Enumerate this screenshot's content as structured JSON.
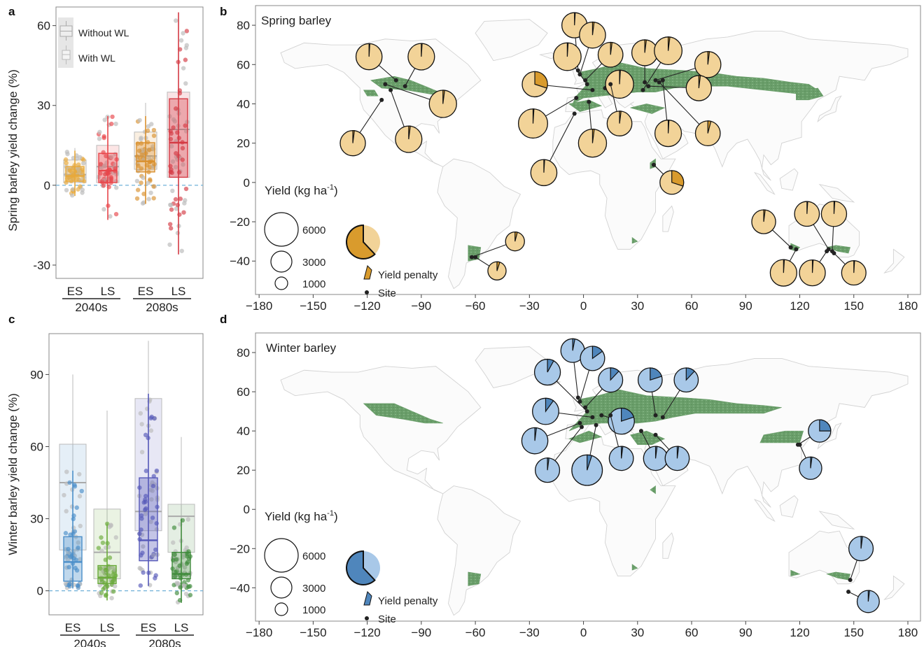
{
  "panels": {
    "a": "a",
    "b": "b",
    "c": "c",
    "d": "d"
  },
  "legend_box": {
    "without": "Without WL",
    "with": "With WL"
  },
  "colors": {
    "spring_es": "#e8a93a",
    "spring_ls": "#e8454a",
    "winter_es": "#4a8ec9",
    "winter_ls": "#6aaa3a",
    "winter_es2080": "#5558b8",
    "winter_ls2080": "#3e8a3a",
    "crop": "#6a9e6a",
    "spring_pie": "#f2d398",
    "spring_pen": "#d99b2d",
    "winter_pie": "#a8c8e8",
    "winter_pen": "#4f86bc",
    "baseline": "#6fb0d8"
  },
  "chart_data": [
    {
      "type": "box",
      "panel": "a",
      "ylabel": "Spring barley yield change (%)",
      "ylim": [
        -35,
        67
      ],
      "yticks": [
        60,
        30,
        0,
        -30
      ],
      "categories": [
        "ES",
        "LS",
        "ES",
        "LS"
      ],
      "periods": [
        "2040s",
        "2080s"
      ],
      "without_wl": [
        {
          "q1": 1,
          "median": 4,
          "q3": 9.5,
          "whislo": -4,
          "whishi": 14
        },
        {
          "q1": 1,
          "median": 7,
          "q3": 15,
          "whislo": -9,
          "whishi": 22
        },
        {
          "q1": 6,
          "median": 11,
          "q3": 20,
          "whislo": -5,
          "whishi": 31
        },
        {
          "q1": 3,
          "median": 21,
          "q3": 35,
          "whislo": -10,
          "whishi": 64
        }
      ],
      "with_wl": [
        {
          "q1": 1.5,
          "median": 3.5,
          "q3": 7,
          "whislo": -4,
          "whishi": 13
        },
        {
          "q1": 1,
          "median": 5.5,
          "q3": 12,
          "whislo": -13,
          "whishi": 26
        },
        {
          "q1": 5,
          "median": 9,
          "q3": 16,
          "whislo": -7,
          "whishi": 26
        },
        {
          "q1": 3,
          "median": 16,
          "q3": 32.5,
          "whislo": -26,
          "whishi": 65
        }
      ]
    },
    {
      "type": "box",
      "panel": "c",
      "ylabel": "Winter barley yield change (%)",
      "ylim": [
        -10,
        107
      ],
      "yticks": [
        90,
        60,
        30,
        0
      ],
      "categories": [
        "ES",
        "LS",
        "ES",
        "LS"
      ],
      "periods": [
        "2040s",
        "2080s"
      ],
      "without_wl": [
        {
          "q1": 17,
          "median": 45,
          "q3": 61,
          "whislo": 1,
          "whishi": 90
        },
        {
          "q1": 5,
          "median": 16,
          "q3": 34,
          "whislo": 0,
          "whishi": 75
        },
        {
          "q1": 25,
          "median": 33,
          "q3": 80,
          "whislo": 3,
          "whishi": 104
        },
        {
          "q1": 16,
          "median": 31,
          "q3": 36,
          "whislo": 0,
          "whishi": 64
        }
      ],
      "with_wl": [
        {
          "q1": 4,
          "median": 12,
          "q3": 22.5,
          "whislo": 1,
          "whishi": 50
        },
        {
          "q1": 3,
          "median": 5.5,
          "q3": 10.5,
          "whislo": -4,
          "whishi": 28
        },
        {
          "q1": 12.5,
          "median": 21,
          "q3": 47,
          "whislo": 2,
          "whishi": 82
        },
        {
          "q1": 5,
          "median": 7,
          "q3": 16,
          "whislo": -5,
          "whishi": 30
        }
      ]
    },
    {
      "type": "map",
      "panel": "b",
      "title": "Spring barley",
      "xlim": [
        -182,
        187
      ],
      "ylim": [
        -57,
        90
      ],
      "xticks": [
        -180,
        -150,
        -120,
        -90,
        -60,
        -30,
        0,
        30,
        60,
        90,
        120,
        150,
        180
      ],
      "yticks": [
        80,
        60,
        40,
        20,
        0,
        -20,
        -40
      ],
      "legend_title": "Yield (kg ha",
      "legend_sup": "-1",
      "legend_title_end": ")",
      "legend_sizes": [
        "6000",
        "3000",
        "1000"
      ],
      "legend_penalty": "Yield penalty",
      "legend_site": "Site",
      "pies": [
        {
          "site": [
            -104,
            52
          ],
          "pie": [
            -119,
            64
          ],
          "yield": 4600,
          "penalty": 0.01
        },
        {
          "site": [
            -99,
            49
          ],
          "pie": [
            -90,
            64
          ],
          "yield": 4800,
          "penalty": 0.01
        },
        {
          "site": [
            -110,
            50
          ],
          "pie": [
            -78,
            40
          ],
          "yield": 5200,
          "penalty": 0.02
        },
        {
          "site": [
            -112,
            42
          ],
          "pie": [
            -128,
            20
          ],
          "yield": 4200,
          "penalty": 0.02
        },
        {
          "site": [
            -107,
            47
          ],
          "pie": [
            -97,
            22
          ],
          "yield": 4800,
          "penalty": 0.02
        },
        {
          "site": [
            -62,
            -38
          ],
          "pie": [
            -38,
            -30
          ],
          "yield": 1800,
          "penalty": 0.04
        },
        {
          "site": [
            -60,
            -38
          ],
          "pie": [
            -48,
            -45
          ],
          "yield": 1600,
          "penalty": 0.05
        },
        {
          "site": [
            -3,
            57
          ],
          "pie": [
            -5,
            80
          ],
          "yield": 4200,
          "penalty": 0.01
        },
        {
          "site": [
            -2,
            55
          ],
          "pie": [
            5,
            75
          ],
          "yield": 4600,
          "penalty": 0.02
        },
        {
          "site": [
            1,
            52
          ],
          "pie": [
            15,
            65
          ],
          "yield": 4000,
          "penalty": 0.02
        },
        {
          "site": [
            2,
            50
          ],
          "pie": [
            -9,
            64
          ],
          "yield": 5400,
          "penalty": 0.01
        },
        {
          "site": [
            5,
            47
          ],
          "pie": [
            -27,
            50
          ],
          "yield": 4200,
          "penalty": 0.3
        },
        {
          "site": [
            12,
            48
          ],
          "pie": [
            20,
            50
          ],
          "yield": 5600,
          "penalty": 0.01
        },
        {
          "site": [
            -4,
            43
          ],
          "pie": [
            -28,
            30
          ],
          "yield": 6200,
          "penalty": 0.01
        },
        {
          "site": [
            3,
            41
          ],
          "pie": [
            5,
            20
          ],
          "yield": 5600,
          "penalty": 0.02
        },
        {
          "site": [
            15,
            50
          ],
          "pie": [
            20,
            30
          ],
          "yield": 4000,
          "penalty": 0.02
        },
        {
          "site": [
            -5,
            35
          ],
          "pie": [
            -22,
            5
          ],
          "yield": 4600,
          "penalty": 0.01
        },
        {
          "site": [
            34,
            51
          ],
          "pie": [
            34,
            66
          ],
          "yield": 4500,
          "penalty": 0.02
        },
        {
          "site": [
            33,
            47
          ],
          "pie": [
            47,
            67
          ],
          "yield": 5400,
          "penalty": 0.02
        },
        {
          "site": [
            40,
            52
          ],
          "pie": [
            69,
            60
          ],
          "yield": 4600,
          "penalty": 0.02
        },
        {
          "site": [
            36,
            49
          ],
          "pie": [
            64,
            48
          ],
          "yield": 4200,
          "penalty": 0.02
        },
        {
          "site": [
            44,
            52
          ],
          "pie": [
            47,
            25
          ],
          "yield": 4800,
          "penalty": 0.01
        },
        {
          "site": [
            42,
            51
          ],
          "pie": [
            69,
            25
          ],
          "yield": 4000,
          "penalty": 0.04
        },
        {
          "site": [
            39,
            9
          ],
          "pie": [
            49,
            0
          ],
          "yield": 3500,
          "penalty": 0.3
        },
        {
          "site": [
            115,
            -33
          ],
          "pie": [
            100,
            -20
          ],
          "yield": 3600,
          "penalty": 0.02
        },
        {
          "site": [
            136,
            -34
          ],
          "pie": [
            124,
            -16
          ],
          "yield": 4000,
          "penalty": 0.01
        },
        {
          "site": [
            138,
            -35
          ],
          "pie": [
            139,
            -16
          ],
          "yield": 4200,
          "penalty": 0.01
        },
        {
          "site": [
            118,
            -34
          ],
          "pie": [
            111,
            -46
          ],
          "yield": 4800,
          "penalty": 0.01
        },
        {
          "site": [
            135,
            -35
          ],
          "pie": [
            127,
            -46
          ],
          "yield": 4500,
          "penalty": 0.01
        },
        {
          "site": [
            139,
            -36
          ],
          "pie": [
            150,
            -46
          ],
          "yield": 3800,
          "penalty": 0.01
        }
      ]
    },
    {
      "type": "map",
      "panel": "d",
      "title": "Winter barley",
      "xlim": [
        -182,
        187
      ],
      "ylim": [
        -57,
        90
      ],
      "xticks": [
        -180,
        -150,
        -120,
        -90,
        -60,
        -30,
        0,
        30,
        60,
        90,
        120,
        150,
        180
      ],
      "yticks": [
        80,
        60,
        40,
        20,
        0,
        -20,
        -40
      ],
      "legend_title": "Yield (kg ha",
      "legend_sup": "-1",
      "legend_title_end": ")",
      "legend_sizes": [
        "6000",
        "3000",
        "1000"
      ],
      "legend_penalty": "Yield penalty",
      "legend_site": "Site",
      "pies": [
        {
          "site": [
            -3,
            57
          ],
          "pie": [
            -6,
            81
          ],
          "yield": 3500,
          "penalty": 0.03
        },
        {
          "site": [
            -2,
            55
          ],
          "pie": [
            5,
            77
          ],
          "yield": 3800,
          "penalty": 0.15
        },
        {
          "site": [
            1,
            52
          ],
          "pie": [
            15,
            66
          ],
          "yield": 3800,
          "penalty": 0.12
        },
        {
          "site": [
            2,
            50
          ],
          "pie": [
            -20,
            70
          ],
          "yield": 4500,
          "penalty": 0.08
        },
        {
          "site": [
            5,
            47
          ],
          "pie": [
            -21,
            50
          ],
          "yield": 4700,
          "penalty": 0.1
        },
        {
          "site": [
            10,
            48
          ],
          "pie": [
            21,
            45
          ],
          "yield": 4600,
          "penalty": 0.2
        },
        {
          "site": [
            -2,
            44
          ],
          "pie": [
            -27,
            35
          ],
          "yield": 4600,
          "penalty": 0.02
        },
        {
          "site": [
            -1,
            42
          ],
          "pie": [
            -20,
            20
          ],
          "yield": 3800,
          "penalty": 0.02
        },
        {
          "site": [
            7,
            43
          ],
          "pie": [
            2,
            20
          ],
          "yield": 7000,
          "penalty": 0.05
        },
        {
          "site": [
            15,
            48
          ],
          "pie": [
            21,
            26
          ],
          "yield": 3700,
          "penalty": 0.02
        },
        {
          "site": [
            40,
            48
          ],
          "pie": [
            37,
            66
          ],
          "yield": 3700,
          "penalty": 0.2
        },
        {
          "site": [
            44,
            47
          ],
          "pie": [
            57,
            66
          ],
          "yield": 3700,
          "penalty": 0.12
        },
        {
          "site": [
            32,
            40
          ],
          "pie": [
            40,
            26
          ],
          "yield": 3700,
          "penalty": 0.02
        },
        {
          "site": [
            40,
            38
          ],
          "pie": [
            52,
            26
          ],
          "yield": 3700,
          "penalty": 0.02
        },
        {
          "site": [
            119,
            33
          ],
          "pie": [
            131,
            40
          ],
          "yield": 3000,
          "penalty": 0.25
        },
        {
          "site": [
            120,
            33
          ],
          "pie": [
            126,
            21
          ],
          "yield": 3000,
          "penalty": 0.02
        },
        {
          "site": [
            148,
            -36
          ],
          "pie": [
            154,
            -20
          ],
          "yield": 3800,
          "penalty": 0.02
        },
        {
          "site": [
            147,
            -42
          ],
          "pie": [
            158,
            -47
          ],
          "yield": 2900,
          "penalty": 0.02
        }
      ]
    }
  ]
}
